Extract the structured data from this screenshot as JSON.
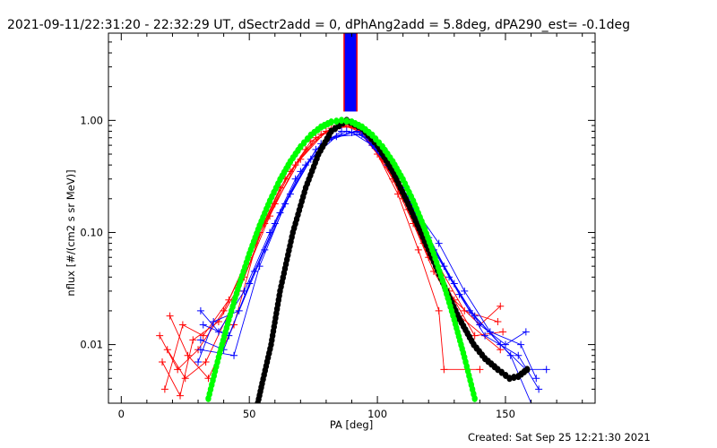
{
  "chart_data": {
    "type": "line",
    "title": "2021-09-11/22:31:20 - 22:32:29 UT, dSectr2add = 0, dPhAng2add = 5.8deg, dPA290_est= -0.1deg",
    "xlabel": "PA [deg]",
    "ylabel": "nflux [#/(cm2 s sr MeV)]",
    "xlim": [
      -5,
      185
    ],
    "ylim": [
      0.003,
      6
    ],
    "yscale": "log",
    "xticks": [
      0,
      50,
      100,
      150
    ],
    "xtick_labels": [
      "0",
      "50",
      "100",
      "150"
    ],
    "yticks": [
      0.01,
      0.1,
      1.0
    ],
    "ytick_labels": [
      "0.01",
      "0.10",
      "1.00"
    ],
    "pa_band": {
      "range": [
        87,
        92
      ],
      "y_from": 1.2,
      "fill": "#0000ff",
      "edge": "#ff0000"
    },
    "colors": {
      "red": "#ff0000",
      "blue": "#0000ff",
      "green": "#00ff00",
      "black": "#000000"
    },
    "series": [
      {
        "name": "red-1",
        "color": "red",
        "marker": "plus",
        "points": [
          [
            15,
            0.012
          ],
          [
            22,
            0.006
          ],
          [
            30,
            0.009
          ],
          [
            40,
            0.02
          ],
          [
            50,
            0.06
          ],
          [
            60,
            0.18
          ],
          [
            70,
            0.45
          ],
          [
            80,
            0.8
          ],
          [
            88,
            0.92
          ],
          [
            96,
            0.75
          ],
          [
            104,
            0.4
          ],
          [
            112,
            0.16
          ],
          [
            120,
            0.06
          ],
          [
            130,
            0.025
          ],
          [
            140,
            0.015
          ],
          [
            148,
            0.022
          ]
        ]
      },
      {
        "name": "red-2",
        "color": "red",
        "marker": "plus",
        "points": [
          [
            17,
            0.004
          ],
          [
            24,
            0.015
          ],
          [
            32,
            0.012
          ],
          [
            42,
            0.025
          ],
          [
            52,
            0.08
          ],
          [
            62,
            0.25
          ],
          [
            72,
            0.55
          ],
          [
            82,
            0.85
          ],
          [
            90,
            0.88
          ],
          [
            98,
            0.6
          ],
          [
            106,
            0.3
          ],
          [
            114,
            0.12
          ],
          [
            122,
            0.045
          ],
          [
            132,
            0.018
          ],
          [
            148,
            0.009
          ]
        ]
      },
      {
        "name": "red-3",
        "color": "red",
        "marker": "plus",
        "points": [
          [
            19,
            0.018
          ],
          [
            26,
            0.008
          ],
          [
            34,
            0.005
          ],
          [
            44,
            0.015
          ],
          [
            54,
            0.1
          ],
          [
            64,
            0.3
          ],
          [
            74,
            0.65
          ],
          [
            84,
            0.9
          ],
          [
            92,
            0.85
          ],
          [
            100,
            0.5
          ],
          [
            108,
            0.22
          ],
          [
            116,
            0.07
          ],
          [
            124,
            0.02
          ],
          [
            126,
            0.006
          ],
          [
            140,
            0.006
          ]
        ]
      },
      {
        "name": "red-4",
        "color": "red",
        "marker": "plus",
        "points": [
          [
            16,
            0.007
          ],
          [
            23,
            0.0035
          ],
          [
            28,
            0.011
          ],
          [
            38,
            0.016
          ],
          [
            48,
            0.04
          ],
          [
            58,
            0.14
          ],
          [
            68,
            0.4
          ],
          [
            78,
            0.75
          ],
          [
            86,
            0.95
          ],
          [
            94,
            0.8
          ],
          [
            102,
            0.45
          ],
          [
            110,
            0.2
          ],
          [
            118,
            0.08
          ],
          [
            128,
            0.03
          ],
          [
            138,
            0.012
          ],
          [
            149,
            0.013
          ]
        ]
      },
      {
        "name": "red-5",
        "color": "red",
        "marker": "plus",
        "points": [
          [
            18,
            0.009
          ],
          [
            25,
            0.005
          ],
          [
            33,
            0.007
          ],
          [
            46,
            0.03
          ],
          [
            56,
            0.12
          ],
          [
            66,
            0.35
          ],
          [
            76,
            0.7
          ],
          [
            86,
            0.92
          ],
          [
            94,
            0.78
          ],
          [
            104,
            0.38
          ],
          [
            114,
            0.14
          ],
          [
            124,
            0.05
          ],
          [
            134,
            0.02
          ],
          [
            147,
            0.016
          ]
        ]
      },
      {
        "name": "blue-1",
        "color": "blue",
        "marker": "plus",
        "points": [
          [
            31,
            0.02
          ],
          [
            38,
            0.013
          ],
          [
            48,
            0.03
          ],
          [
            58,
            0.1
          ],
          [
            68,
            0.3
          ],
          [
            78,
            0.62
          ],
          [
            88,
            0.8
          ],
          [
            96,
            0.7
          ],
          [
            104,
            0.42
          ],
          [
            112,
            0.2
          ],
          [
            120,
            0.09
          ],
          [
            130,
            0.035
          ],
          [
            140,
            0.015
          ],
          [
            150,
            0.01
          ],
          [
            158,
            0.013
          ]
        ]
      },
      {
        "name": "blue-2",
        "color": "blue",
        "marker": "plus",
        "points": [
          [
            31,
            0.011
          ],
          [
            40,
            0.009
          ],
          [
            50,
            0.035
          ],
          [
            60,
            0.12
          ],
          [
            70,
            0.35
          ],
          [
            80,
            0.65
          ],
          [
            90,
            0.78
          ],
          [
            98,
            0.6
          ],
          [
            106,
            0.35
          ],
          [
            114,
            0.16
          ],
          [
            122,
            0.07
          ],
          [
            132,
            0.028
          ],
          [
            142,
            0.012
          ],
          [
            155,
            0.008
          ],
          [
            163,
            0.004
          ]
        ]
      },
      {
        "name": "blue-3",
        "color": "blue",
        "marker": "plus",
        "points": [
          [
            30,
            0.007
          ],
          [
            36,
            0.016
          ],
          [
            46,
            0.02
          ],
          [
            56,
            0.07
          ],
          [
            66,
            0.22
          ],
          [
            76,
            0.55
          ],
          [
            86,
            0.8
          ],
          [
            94,
            0.78
          ],
          [
            102,
            0.5
          ],
          [
            110,
            0.25
          ],
          [
            118,
            0.11
          ],
          [
            128,
            0.04
          ],
          [
            138,
            0.018
          ],
          [
            152,
            0.008
          ],
          [
            160,
            0.003
          ]
        ]
      },
      {
        "name": "blue-4",
        "color": "blue",
        "marker": "plus",
        "points": [
          [
            32,
            0.015
          ],
          [
            42,
            0.012
          ],
          [
            52,
            0.045
          ],
          [
            62,
            0.15
          ],
          [
            72,
            0.4
          ],
          [
            82,
            0.7
          ],
          [
            92,
            0.8
          ],
          [
            100,
            0.55
          ],
          [
            108,
            0.3
          ],
          [
            116,
            0.14
          ],
          [
            126,
            0.05
          ],
          [
            136,
            0.02
          ],
          [
            148,
            0.01
          ],
          [
            158,
            0.006
          ],
          [
            166,
            0.006
          ]
        ]
      },
      {
        "name": "blue-5",
        "color": "blue",
        "marker": "plus",
        "points": [
          [
            31,
            0.009
          ],
          [
            44,
            0.008
          ],
          [
            54,
            0.05
          ],
          [
            64,
            0.18
          ],
          [
            74,
            0.45
          ],
          [
            84,
            0.72
          ],
          [
            94,
            0.75
          ],
          [
            104,
            0.4
          ],
          [
            114,
            0.17
          ],
          [
            124,
            0.08
          ],
          [
            134,
            0.03
          ],
          [
            144,
            0.013
          ],
          [
            156,
            0.01
          ],
          [
            162,
            0.005
          ]
        ]
      },
      {
        "name": "black-fit",
        "color": "black",
        "marker": "dot",
        "points": [
          [
            53.3,
            0.003
          ],
          [
            55,
            0.0045
          ],
          [
            58.5,
            0.01
          ],
          [
            62,
            0.03
          ],
          [
            67,
            0.1
          ],
          [
            72,
            0.25
          ],
          [
            77,
            0.5
          ],
          [
            82,
            0.8
          ],
          [
            88,
            1.0
          ],
          [
            94,
            0.85
          ],
          [
            100,
            0.6
          ],
          [
            106,
            0.35
          ],
          [
            112,
            0.18
          ],
          [
            117,
            0.1
          ],
          [
            122,
            0.055
          ],
          [
            127,
            0.03
          ],
          [
            132,
            0.017
          ],
          [
            137.6,
            0.01
          ],
          [
            142,
            0.0075
          ],
          [
            147,
            0.006
          ],
          [
            151.6,
            0.005
          ],
          [
            155,
            0.0052
          ],
          [
            158.5,
            0.006
          ]
        ]
      },
      {
        "name": "green-fit",
        "color": "green",
        "marker": "dot",
        "points": [
          [
            34,
            0.0033
          ],
          [
            38,
            0.0077
          ],
          [
            42,
            0.0167
          ],
          [
            46,
            0.034
          ],
          [
            50,
            0.0646
          ],
          [
            54,
            0.115
          ],
          [
            58,
            0.191
          ],
          [
            62,
            0.296
          ],
          [
            66,
            0.429
          ],
          [
            70,
            0.582
          ],
          [
            74,
            0.738
          ],
          [
            78,
            0.873
          ],
          [
            82,
            0.967
          ],
          [
            86,
            1.0
          ],
          [
            90,
            0.967
          ],
          [
            94,
            0.873
          ],
          [
            98,
            0.738
          ],
          [
            102,
            0.582
          ],
          [
            106,
            0.429
          ],
          [
            110,
            0.296
          ],
          [
            114,
            0.191
          ],
          [
            118,
            0.115
          ],
          [
            122,
            0.0646
          ],
          [
            126,
            0.034
          ],
          [
            130,
            0.0167
          ],
          [
            134,
            0.0077
          ],
          [
            138,
            0.0033
          ]
        ]
      }
    ],
    "grid": false,
    "legend": "none"
  },
  "footer": {
    "created": "Created: Sat Sep 25 12:21:30 2021"
  }
}
